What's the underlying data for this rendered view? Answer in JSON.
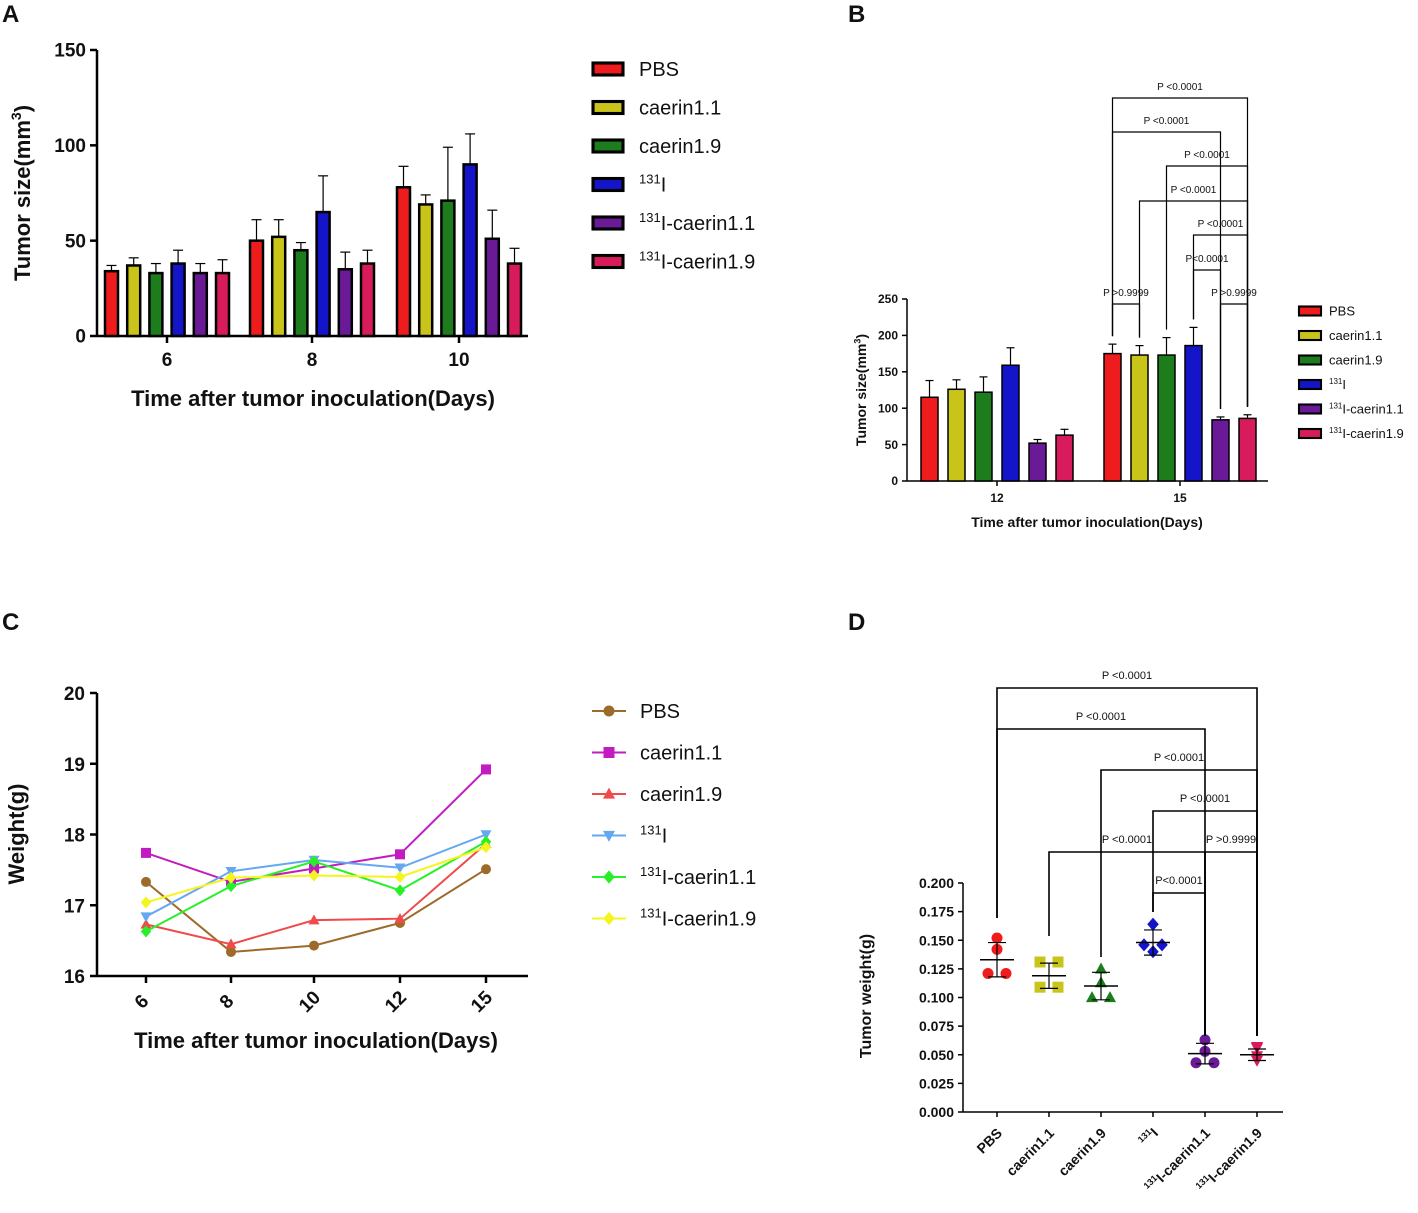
{
  "chart_data": [
    {
      "panel": "A",
      "type": "bar",
      "xlabel": "Time after tumor inoculation(Days)",
      "ylabel": "Tumor size(mm3)",
      "ylim": [
        0,
        150
      ],
      "yticks": [
        0,
        50,
        100,
        150
      ],
      "categories": [
        "6",
        "8",
        "10"
      ],
      "series": [
        {
          "name": "PBS",
          "sup": "",
          "values": [
            34,
            50,
            78
          ],
          "errors": [
            3,
            11,
            11
          ],
          "color": "#ee1c1c"
        },
        {
          "name": "caerin1.1",
          "sup": "",
          "values": [
            37,
            52,
            69
          ],
          "errors": [
            4,
            9,
            5
          ],
          "color": "#c9c41a"
        },
        {
          "name": "caerin1.9",
          "sup": "",
          "values": [
            33,
            45,
            71
          ],
          "errors": [
            5,
            4,
            28
          ],
          "color": "#1d7d1d"
        },
        {
          "name": "I",
          "sup": "131",
          "values": [
            38,
            65,
            90
          ],
          "errors": [
            7,
            19,
            16
          ],
          "color": "#1414c8"
        },
        {
          "name": "I-caerin1.1",
          "sup": "131",
          "values": [
            33,
            35,
            51
          ],
          "errors": [
            5,
            9,
            15
          ],
          "color": "#6a1a96"
        },
        {
          "name": "I-caerin1.9",
          "sup": "131",
          "values": [
            33,
            38,
            38
          ],
          "errors": [
            7,
            7,
            8
          ],
          "color": "#d81b5c"
        }
      ]
    },
    {
      "panel": "B",
      "type": "bar",
      "xlabel": "Time after tumor inoculation(Days)",
      "ylabel": "Tumor size(mm3)",
      "ylim": [
        0,
        250
      ],
      "yticks": [
        0,
        50,
        100,
        150,
        200,
        250
      ],
      "categories": [
        "12",
        "15"
      ],
      "series": [
        {
          "name": "PBS",
          "sup": "",
          "values": [
            115,
            175
          ],
          "errors": [
            23,
            13
          ],
          "color": "#ee1c1c"
        },
        {
          "name": "caerin1.1",
          "sup": "",
          "values": [
            126,
            173
          ],
          "errors": [
            13,
            13
          ],
          "color": "#c9c41a"
        },
        {
          "name": "caerin1.9",
          "sup": "",
          "values": [
            122,
            173
          ],
          "errors": [
            21,
            24
          ],
          "color": "#1d7d1d"
        },
        {
          "name": "I",
          "sup": "131",
          "values": [
            159,
            186
          ],
          "errors": [
            24,
            25
          ],
          "color": "#1414c8"
        },
        {
          "name": "I-caerin1.1",
          "sup": "131",
          "values": [
            52,
            84
          ],
          "errors": [
            5,
            4
          ],
          "color": "#6a1a96"
        },
        {
          "name": "I-caerin1.9",
          "sup": "131",
          "values": [
            63,
            86
          ],
          "errors": [
            8,
            5
          ],
          "color": "#d81b5c"
        }
      ],
      "annotations": [
        {
          "from": 0,
          "to": 5,
          "text": "P <0.0001"
        },
        {
          "from": 0,
          "to": 4,
          "text": "P <0.0001"
        },
        {
          "from": 2,
          "to": 5,
          "text": "P <0.0001"
        },
        {
          "from": 1,
          "to": 5,
          "text": "P <0.0001"
        },
        {
          "from": 3,
          "to": 5,
          "text": "P <0.0001"
        },
        {
          "from": 3,
          "to": 4,
          "text": "P<0.0001"
        },
        {
          "from": 0,
          "to": 1,
          "text": "P >0.9999"
        },
        {
          "from": 4,
          "to": 5,
          "text": "P >0.9999"
        }
      ]
    },
    {
      "panel": "C",
      "type": "line",
      "xlabel": "Time after tumor inoculation(Days)",
      "ylabel": "Weight(g)",
      "ylim": [
        16,
        20
      ],
      "yticks": [
        16,
        17,
        18,
        19,
        20
      ],
      "categories": [
        "6",
        "8",
        "10",
        "12",
        "15"
      ],
      "series": [
        {
          "name": "PBS",
          "sup": "",
          "marker": "circle",
          "color": "#9c6b2a",
          "values": [
            17.33,
            16.34,
            16.43,
            16.75,
            17.51
          ]
        },
        {
          "name": "caerin1.1",
          "sup": "",
          "marker": "square",
          "color": "#c21bc2",
          "values": [
            17.74,
            17.33,
            17.52,
            17.72,
            18.92
          ]
        },
        {
          "name": "caerin1.9",
          "sup": "",
          "marker": "triangle-up",
          "color": "#f04a4a",
          "values": [
            16.73,
            16.45,
            16.79,
            16.81,
            17.87
          ]
        },
        {
          "name": "I",
          "sup": "131",
          "marker": "triangle-down",
          "color": "#64a8f0",
          "values": [
            16.84,
            17.48,
            17.64,
            17.53,
            18.0
          ]
        },
        {
          "name": "I-caerin1.1",
          "sup": "131",
          "marker": "diamond",
          "color": "#28f028",
          "values": [
            16.63,
            17.27,
            17.62,
            17.21,
            17.9
          ]
        },
        {
          "name": "I-caerin1.9",
          "sup": "131",
          "marker": "diamond",
          "color": "#f5f51e",
          "values": [
            17.04,
            17.39,
            17.42,
            17.4,
            17.82
          ]
        }
      ]
    },
    {
      "panel": "D",
      "type": "scatter",
      "ylabel": "Tumor weight(g)",
      "ylim": [
        0,
        0.2
      ],
      "yticks": [
        "0.000",
        "0.025",
        "0.050",
        "0.075",
        "0.100",
        "0.125",
        "0.150",
        "0.175",
        "0.200"
      ],
      "categories": [
        {
          "name": "PBS",
          "sup": ""
        },
        {
          "name": "caerin1.1",
          "sup": ""
        },
        {
          "name": "caerin1.9",
          "sup": ""
        },
        {
          "name": "I",
          "sup": "131"
        },
        {
          "name": "I-caerin1.1",
          "sup": "131"
        },
        {
          "name": "I-caerin1.9",
          "sup": "131"
        }
      ],
      "groups": [
        {
          "marker": "circle",
          "color": "#ee1c1c",
          "points": [
            0.152,
            0.142,
            0.121,
            0.121
          ],
          "mean": 0.133,
          "sd": 0.015
        },
        {
          "marker": "square",
          "color": "#c9c41a",
          "points": [
            0.131,
            0.131,
            0.109,
            0.109
          ],
          "mean": 0.119,
          "sd": 0.011
        },
        {
          "marker": "triangle-up",
          "color": "#1d7d1d",
          "points": [
            0.125,
            0.113,
            0.1,
            0.1
          ],
          "mean": 0.11,
          "sd": 0.012
        },
        {
          "marker": "diamond",
          "color": "#1414c8",
          "points": [
            0.164,
            0.146,
            0.146,
            0.14
          ],
          "mean": 0.148,
          "sd": 0.011
        },
        {
          "marker": "circle",
          "color": "#6a1a96",
          "points": [
            0.063,
            0.053,
            0.043,
            0.043
          ],
          "mean": 0.051,
          "sd": 0.009
        },
        {
          "marker": "triangle-down",
          "color": "#d81b5c",
          "points": [
            0.057,
            0.056,
            0.049,
            0.045
          ],
          "mean": 0.05,
          "sd": 0.005
        }
      ],
      "annotations": [
        {
          "from": 0,
          "to": 5,
          "text": "P <0.0001"
        },
        {
          "from": 0,
          "to": 4,
          "text": "P <0.0001"
        },
        {
          "from": 2,
          "to": 5,
          "text": "P <0.0001"
        },
        {
          "from": 3,
          "to": 5,
          "text": "P <0.0001"
        },
        {
          "from": 1,
          "to": 4,
          "text": "P <0.0001"
        },
        {
          "from": 4,
          "to": 5,
          "text": "P >0.9999"
        },
        {
          "from": 3,
          "to": 4,
          "text": "P<0.0001"
        }
      ]
    }
  ],
  "panels": {
    "a": "A",
    "b": "B",
    "c": "C",
    "d": "D"
  }
}
